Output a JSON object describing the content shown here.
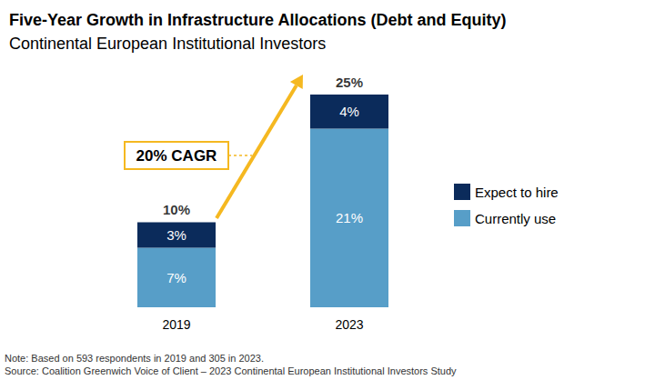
{
  "chart_data": {
    "type": "bar",
    "title": "Five-Year Growth in Infrastructure Allocations (Debt and Equity)",
    "subtitle": "Continental European Institutional Investors",
    "categories": [
      "2019",
      "2023"
    ],
    "series": [
      {
        "name": "Currently use",
        "color": "#579ec8",
        "values": [
          7,
          21
        ],
        "value_labels": [
          "7%",
          "21%"
        ]
      },
      {
        "name": "Expect to hire",
        "color": "#0b2b5b",
        "values": [
          3,
          4
        ],
        "value_labels": [
          "3%",
          "4%"
        ]
      }
    ],
    "totals": {
      "values": [
        10,
        25
      ],
      "value_labels": [
        "10%",
        "25%"
      ]
    },
    "annotations": [
      "20% CAGR"
    ],
    "notes": [
      "Note: Based on 593 respondents in 2019 and 305 in 2023.",
      "Source: Coalition Greenwich Voice of Client – 2023 Continental European Institutional Investors Study"
    ],
    "stacked": true,
    "data_labels": true,
    "legend": "right",
    "grid": false,
    "tick_labels": "x",
    "ylim": [
      0,
      25
    ],
    "yticks": [
      0,
      25
    ]
  }
}
